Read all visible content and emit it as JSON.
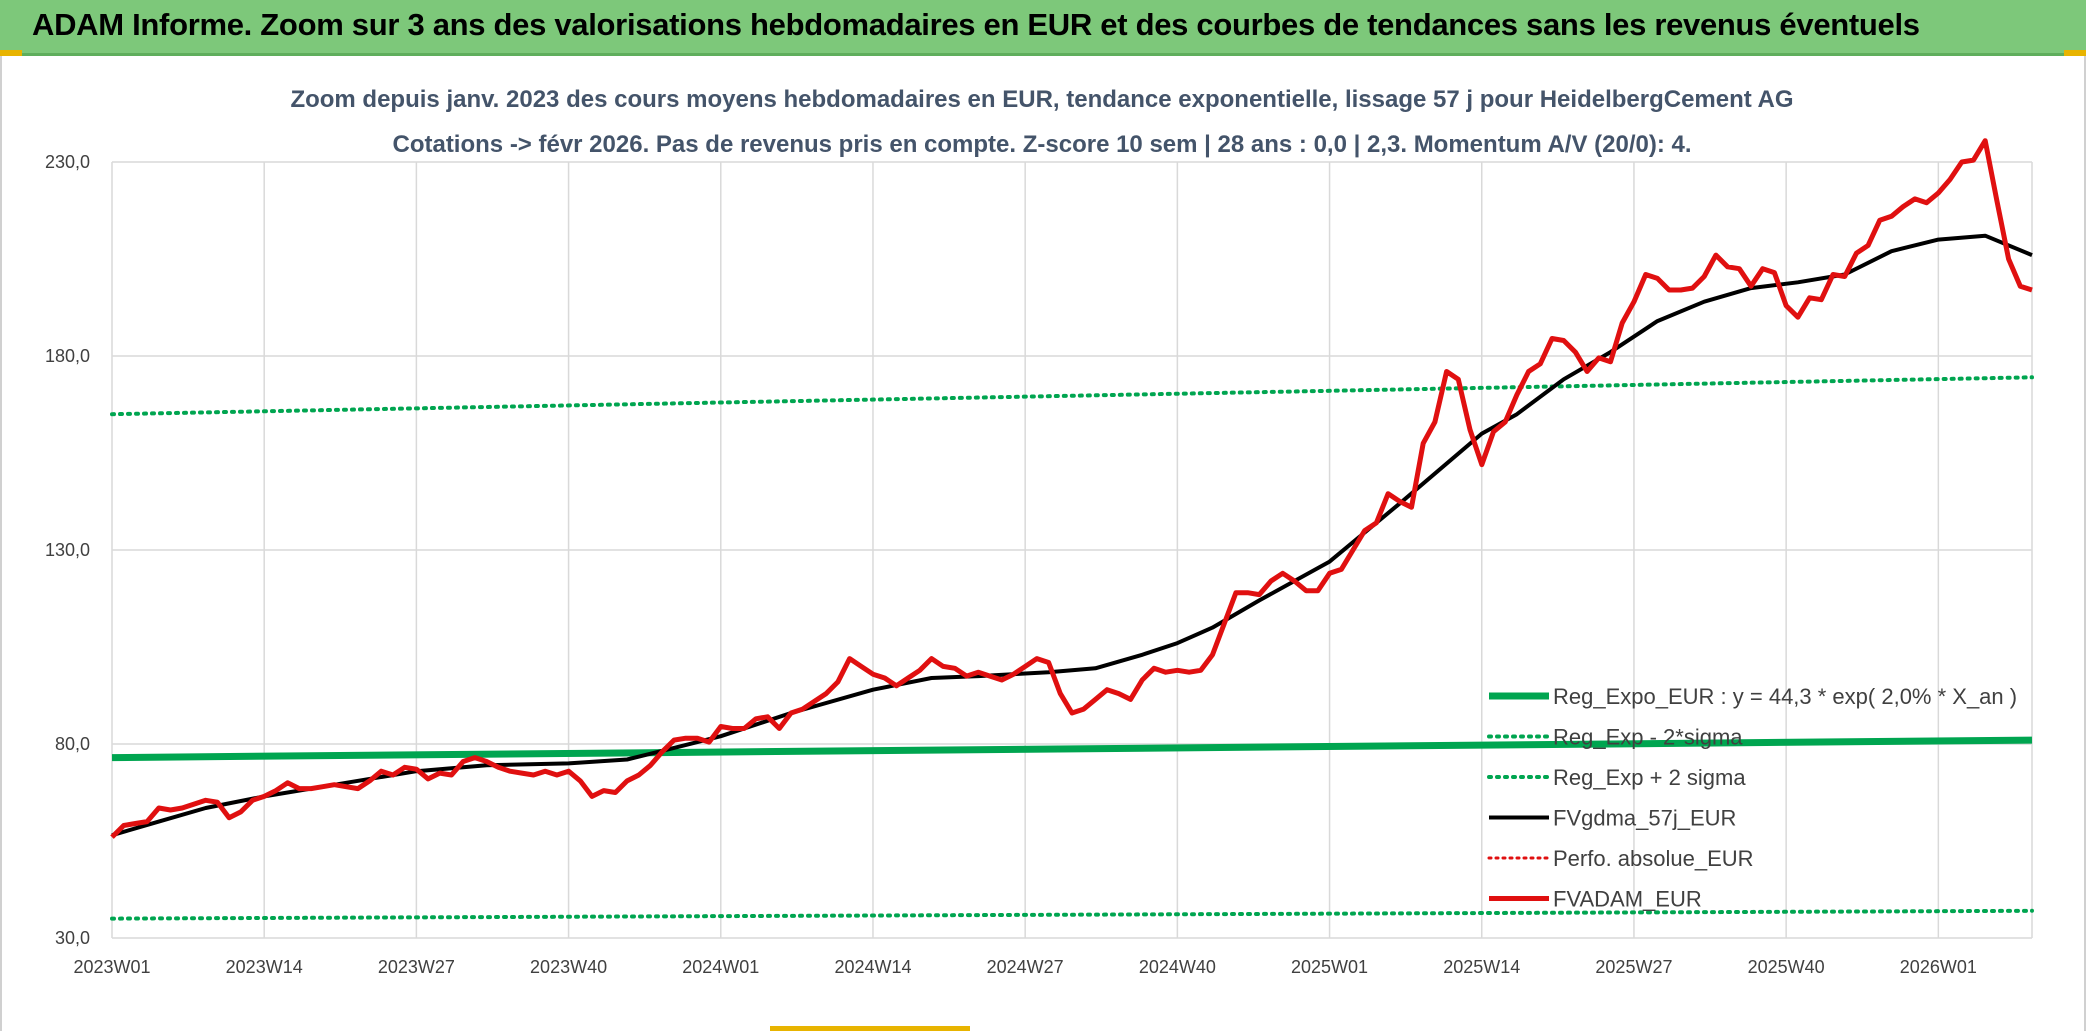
{
  "header": {
    "title": "ADAM Informe. Zoom sur 3 ans des valorisations hebdomadaires en EUR et des courbes de tendances sans les revenus éventuels"
  },
  "colors": {
    "header_bg": "#7dc87a",
    "reg_expo": "#00a550",
    "reg_sigma": "#00a550",
    "fvgdma": "#000000",
    "perfo_abs": "#e01010",
    "fvadam": "#e01010"
  },
  "chart_data": {
    "type": "line",
    "title_line1": "Zoom depuis janv. 2023 des cours moyens hebdomadaires en EUR, tendance exponentielle, lissage 57 j pour HeidelbergCement AG",
    "title_line2": "Cotations -> févr 2026. Pas de revenus pris en compte. Z-score 10 sem | 28 ans : 0,0 | 2,3. Momentum A/V (20/0): 4.",
    "ylim": [
      30,
      230
    ],
    "y_ticks": [
      "30,0",
      "80,0",
      "130,0",
      "180,0",
      "230,0"
    ],
    "y_tick_values": [
      30,
      80,
      130,
      180,
      230
    ],
    "x_tick_labels": [
      "2023W01",
      "2023W14",
      "2023W27",
      "2023W40",
      "2024W01",
      "2024W14",
      "2024W27",
      "2024W40",
      "2025W01",
      "2025W14",
      "2025W27",
      "2025W40",
      "2026W01"
    ],
    "x_tick_weeks": [
      0,
      13,
      26,
      39,
      52,
      65,
      78,
      91,
      104,
      117,
      130,
      143,
      156
    ],
    "x_max_week": 164,
    "grid": true,
    "legend_position": "bottom-right",
    "series": [
      {
        "name": "Reg_Expo_EUR : y = 44,3 * exp( 2,0% *  X_an )",
        "style": "thick",
        "x": [
          0,
          164
        ],
        "values": [
          76.5,
          81.0
        ]
      },
      {
        "name": "Reg_Exp - 2*sigma",
        "style": "dotted",
        "x": [
          0,
          164
        ],
        "values": [
          35.0,
          37.0
        ]
      },
      {
        "name": "Reg_Exp + 2 sigma",
        "style": "dotted",
        "x": [
          0,
          164
        ],
        "values": [
          165.0,
          174.5
        ]
      },
      {
        "name": "FVgdma_57j_EUR",
        "style": "solid",
        "x": [
          0,
          4,
          8,
          13,
          20,
          26,
          32,
          39,
          44,
          48,
          52,
          58,
          65,
          70,
          74,
          80,
          84,
          88,
          91,
          94,
          98,
          104,
          110,
          117,
          120,
          124,
          128,
          132,
          136,
          140,
          144,
          148,
          152,
          156,
          160,
          164
        ],
        "values": [
          56.5,
          60,
          63.5,
          66.5,
          70,
          73,
          74.5,
          75,
          76,
          79,
          82,
          88,
          94,
          97,
          97.5,
          98.5,
          99.5,
          103,
          106,
          110,
          117,
          127,
          142,
          160,
          165,
          174,
          181,
          189,
          194,
          197.5,
          199,
          201,
          207,
          210,
          211,
          206
        ]
      },
      {
        "name": "Perfo. absolue_EUR",
        "style": "dotted-hidden",
        "x": [],
        "values": []
      },
      {
        "name": "FVADAM_EUR",
        "style": "solid-thick",
        "x": [
          0,
          1,
          2,
          3,
          4,
          5,
          6,
          7,
          8,
          9,
          10,
          11,
          12,
          13,
          14,
          15,
          16,
          17,
          18,
          19,
          20,
          21,
          22,
          23,
          24,
          25,
          26,
          27,
          28,
          29,
          30,
          31,
          32,
          33,
          34,
          35,
          36,
          37,
          38,
          39,
          40,
          41,
          42,
          43,
          44,
          45,
          46,
          47,
          48,
          49,
          50,
          51,
          52,
          53,
          54,
          55,
          56,
          57,
          58,
          59,
          60,
          61,
          62,
          63,
          64,
          65,
          66,
          67,
          68,
          69,
          70,
          71,
          72,
          73,
          74,
          75,
          76,
          77,
          78,
          79,
          80,
          81,
          82,
          83,
          84,
          85,
          86,
          87,
          88,
          89,
          90,
          91,
          92,
          93,
          94,
          95,
          96,
          97,
          98,
          99,
          100,
          101,
          102,
          103,
          104,
          105,
          106,
          107,
          108,
          109,
          110,
          111,
          112,
          113,
          114,
          115,
          116,
          117,
          118,
          119,
          120,
          121,
          122,
          123,
          124,
          125,
          126,
          127,
          128,
          129,
          130,
          131,
          132,
          133,
          134,
          135,
          136,
          137,
          138,
          139,
          140,
          141,
          142,
          143,
          144,
          145,
          146,
          147,
          148,
          149,
          150,
          151,
          152,
          153,
          154,
          155,
          156,
          157,
          158,
          159,
          160,
          161,
          162,
          163,
          164
        ],
        "values": [
          56,
          59,
          59.5,
          60,
          63.5,
          63,
          63.5,
          64.5,
          65.5,
          65,
          61,
          62.5,
          65.5,
          66.5,
          68,
          70,
          68.5,
          68.5,
          69,
          69.5,
          69,
          68.5,
          70.5,
          73,
          72,
          74,
          73.5,
          71,
          72.5,
          72,
          75.5,
          76.5,
          75.5,
          74,
          73,
          72.5,
          72,
          73,
          72,
          73,
          70.5,
          66.5,
          68,
          67.5,
          70.5,
          72,
          74.5,
          78,
          81,
          81.5,
          81.5,
          80.5,
          84.5,
          84,
          84,
          86.5,
          87,
          84,
          88,
          89,
          91,
          93,
          96,
          102,
          100,
          98,
          97,
          95,
          97,
          99,
          102,
          100,
          99.5,
          97.5,
          98.5,
          97.5,
          96.5,
          98,
          100,
          102,
          101,
          93,
          88,
          89,
          91.5,
          94,
          93,
          91.5,
          96.5,
          99.5,
          98.5,
          99,
          98.5,
          99,
          103,
          111,
          119,
          119,
          118.5,
          122,
          124,
          122,
          119.5,
          119.5,
          124,
          125,
          130,
          135,
          137,
          144.5,
          142.5,
          141,
          157.5,
          163,
          176,
          174,
          161,
          152,
          160.5,
          163,
          170,
          176,
          178,
          184.5,
          184,
          181,
          176,
          179.5,
          178.5,
          188.5,
          194,
          201,
          200,
          197,
          197,
          197.5,
          200.5,
          206,
          203,
          202.5,
          198,
          202.5,
          201.5,
          193,
          190,
          195,
          194.5,
          201,
          200.5,
          206.5,
          208.5,
          215,
          216,
          218.5,
          220.5,
          219.5,
          222,
          225.5,
          230,
          230.5,
          235.5,
          220,
          205,
          198,
          197
        ]
      }
    ]
  },
  "legend": {
    "items": [
      "Reg_Expo_EUR : y = 44,3 * exp( 2,0% *  X_an )",
      "Reg_Exp - 2*sigma",
      "Reg_Exp + 2 sigma",
      "FVgdma_57j_EUR",
      "Perfo. absolue_EUR",
      "FVADAM_EUR"
    ]
  }
}
